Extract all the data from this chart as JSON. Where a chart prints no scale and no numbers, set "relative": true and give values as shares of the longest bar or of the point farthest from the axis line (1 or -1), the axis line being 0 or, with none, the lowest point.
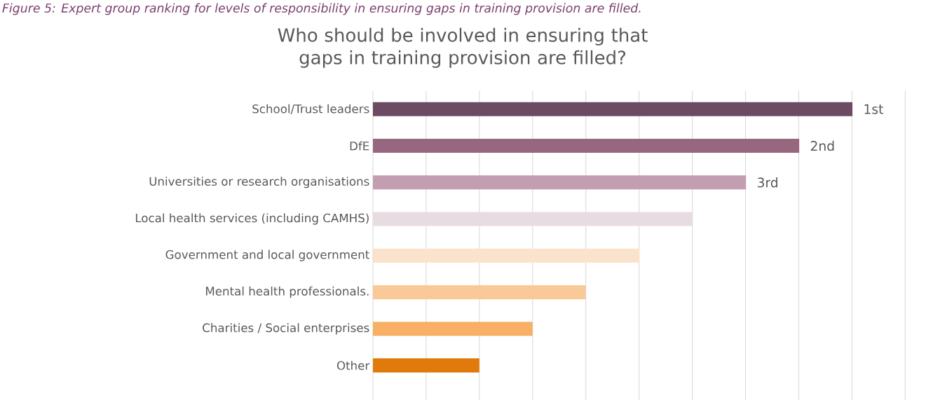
{
  "chart_data": {
    "type": "bar",
    "orientation": "horizontal",
    "relative": true,
    "grid": "x",
    "title": "Who should be involved in ensuring that gaps in training provision are filled?",
    "annotations": [
      "Figure 5: Expert group ranking for levels of responsibility in ensuring gaps in training provision are filled.",
      {
        "text": "1st",
        "x": 1,
        "y": "School/Trust leaders"
      },
      {
        "text": "2nd",
        "x": 0.889,
        "y": "DfE"
      },
      {
        "text": "3rd",
        "x": 0.778,
        "y": "Universities or research organisations"
      }
    ],
    "categories": [
      "School/Trust leaders",
      "DfE",
      "Universities or research organisations",
      "Local health services (including CAMHS)",
      "Government and local government",
      "Mental health professionals.",
      "Charities / Social enterprises",
      "Other"
    ],
    "values": [
      1,
      0.889,
      0.778,
      0.667,
      0.556,
      0.444,
      0.333,
      0.222
    ],
    "colors": [
      "#6c4a62",
      "#96677e",
      "#c39eb0",
      "#e8dce3",
      "#fbe3cb",
      "#f9c998",
      "#f7b065",
      "#e07b0b"
    ]
  }
}
